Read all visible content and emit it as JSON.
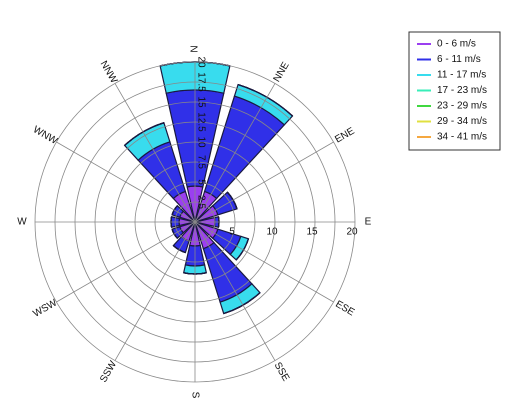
{
  "chart_data": {
    "type": "windrose",
    "categories": [
      "N",
      "NNE",
      "ENE",
      "E",
      "ESE",
      "SSE",
      "S",
      "SSW",
      "WSW",
      "W",
      "WNW",
      "NNW"
    ],
    "series": [
      {
        "name": "0 - 6 m/s",
        "color": "#9b3ff0",
        "values": [
          4.5,
          4,
          3,
          2.5,
          3,
          3.5,
          3,
          2.5,
          2,
          2,
          2,
          4
        ]
      },
      {
        "name": "6 - 11 m/s",
        "color": "#3030e8",
        "values": [
          12,
          12.5,
          2.5,
          0.5,
          3,
          7,
          2.5,
          1.5,
          1,
          1,
          1,
          6.5
        ]
      },
      {
        "name": "11 - 17 m/s",
        "color": "#38dcee",
        "values": [
          3.5,
          1.5,
          0,
          0,
          1,
          1.5,
          1,
          0,
          0,
          0,
          0,
          2.5
        ]
      },
      {
        "name": "17 - 23 m/s",
        "color": "#38eeb8",
        "values": [
          0,
          0,
          0,
          0,
          0,
          0,
          0,
          0,
          0,
          0,
          0,
          0
        ]
      },
      {
        "name": "23 - 29 m/s",
        "color": "#40d840",
        "values": [
          0,
          0,
          0,
          0,
          0,
          0,
          0,
          0,
          0,
          0,
          0,
          0
        ]
      },
      {
        "name": "29 - 34 m/s",
        "color": "#e0e040",
        "values": [
          0,
          0,
          0,
          0,
          0,
          0,
          0,
          0,
          0,
          0,
          0,
          0
        ]
      },
      {
        "name": "34 - 41 m/s",
        "color": "#f5a840",
        "values": [
          0,
          0,
          0,
          0,
          0,
          0,
          0,
          0,
          0,
          0,
          0,
          0
        ]
      }
    ],
    "rlim": [
      0,
      20
    ],
    "rticks": [
      2.5,
      5,
      7.5,
      10,
      12.5,
      15,
      17.5,
      20
    ],
    "grid": true
  }
}
